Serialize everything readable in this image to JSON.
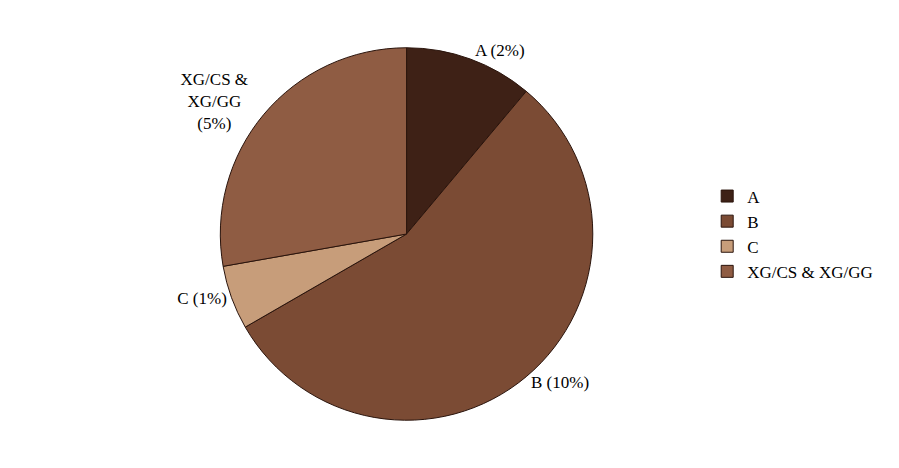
{
  "chart_data": {
    "type": "pie",
    "categories": [
      "A",
      "B",
      "C",
      "XG/CS & XG/GG"
    ],
    "values": [
      2,
      10,
      1,
      5
    ],
    "value_labels": [
      "A (2%)",
      "B (10%)",
      "C (1%)",
      "XG/CS & XG/GG (5%)"
    ],
    "colors": [
      "#3e2116",
      "#7b4b34",
      "#c79d7a",
      "#8f5c43"
    ],
    "data_labels": true,
    "legend": "right"
  }
}
